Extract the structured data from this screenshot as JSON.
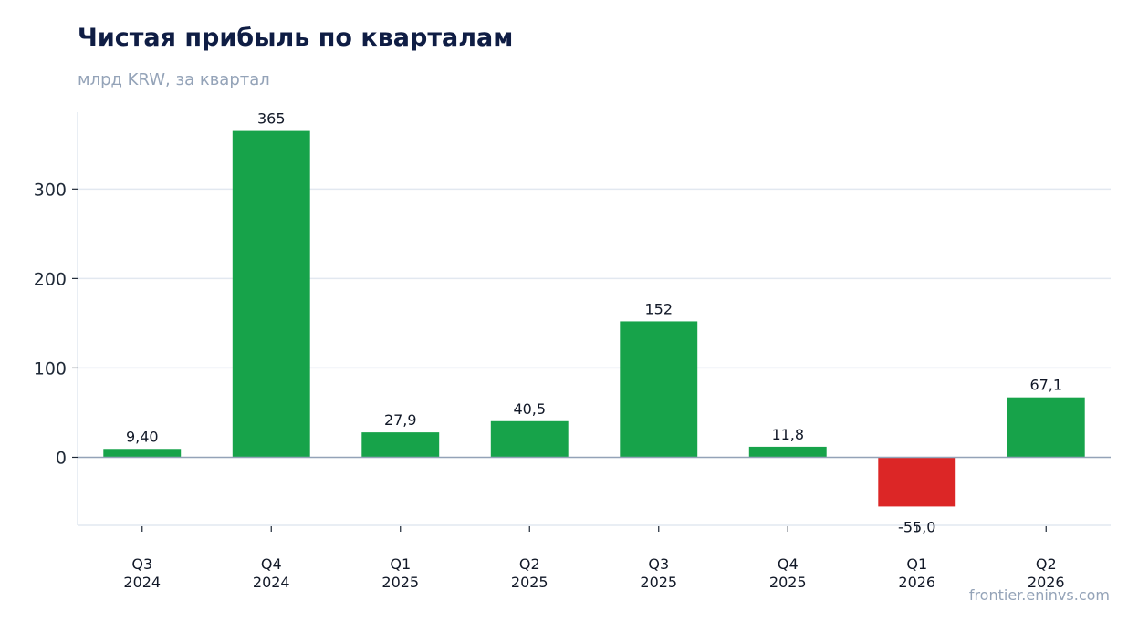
{
  "header": {
    "title": "Чистая прибыль по кварталам",
    "subtitle": "млрд KRW, за квартал"
  },
  "footer": {
    "source": "frontier.eninvs.com"
  },
  "chart_data": {
    "type": "bar",
    "title": "Чистая прибыль по кварталам",
    "subtitle": "млрд KRW, за квартал",
    "categories": [
      [
        "Q3",
        "2024"
      ],
      [
        "Q4",
        "2024"
      ],
      [
        "Q1",
        "2025"
      ],
      [
        "Q2",
        "2025"
      ],
      [
        "Q3",
        "2025"
      ],
      [
        "Q4",
        "2025"
      ],
      [
        "Q1",
        "2026"
      ],
      [
        "Q2",
        "2026"
      ]
    ],
    "values": [
      9.4,
      365,
      27.9,
      40.5,
      152,
      11.8,
      -55.0,
      67.1
    ],
    "value_labels": [
      "9,40",
      "365",
      "27,9",
      "40,5",
      "152",
      "11,8",
      "-55,0",
      "67,1"
    ],
    "yticks": [
      0,
      100,
      200,
      300
    ],
    "ylim": [
      -76,
      386
    ],
    "grid": true,
    "colors": {
      "positive": "#17a34a",
      "negative": "#dc2626",
      "grid": "#e2e8f0",
      "zero_line": "#94a3b8"
    }
  }
}
